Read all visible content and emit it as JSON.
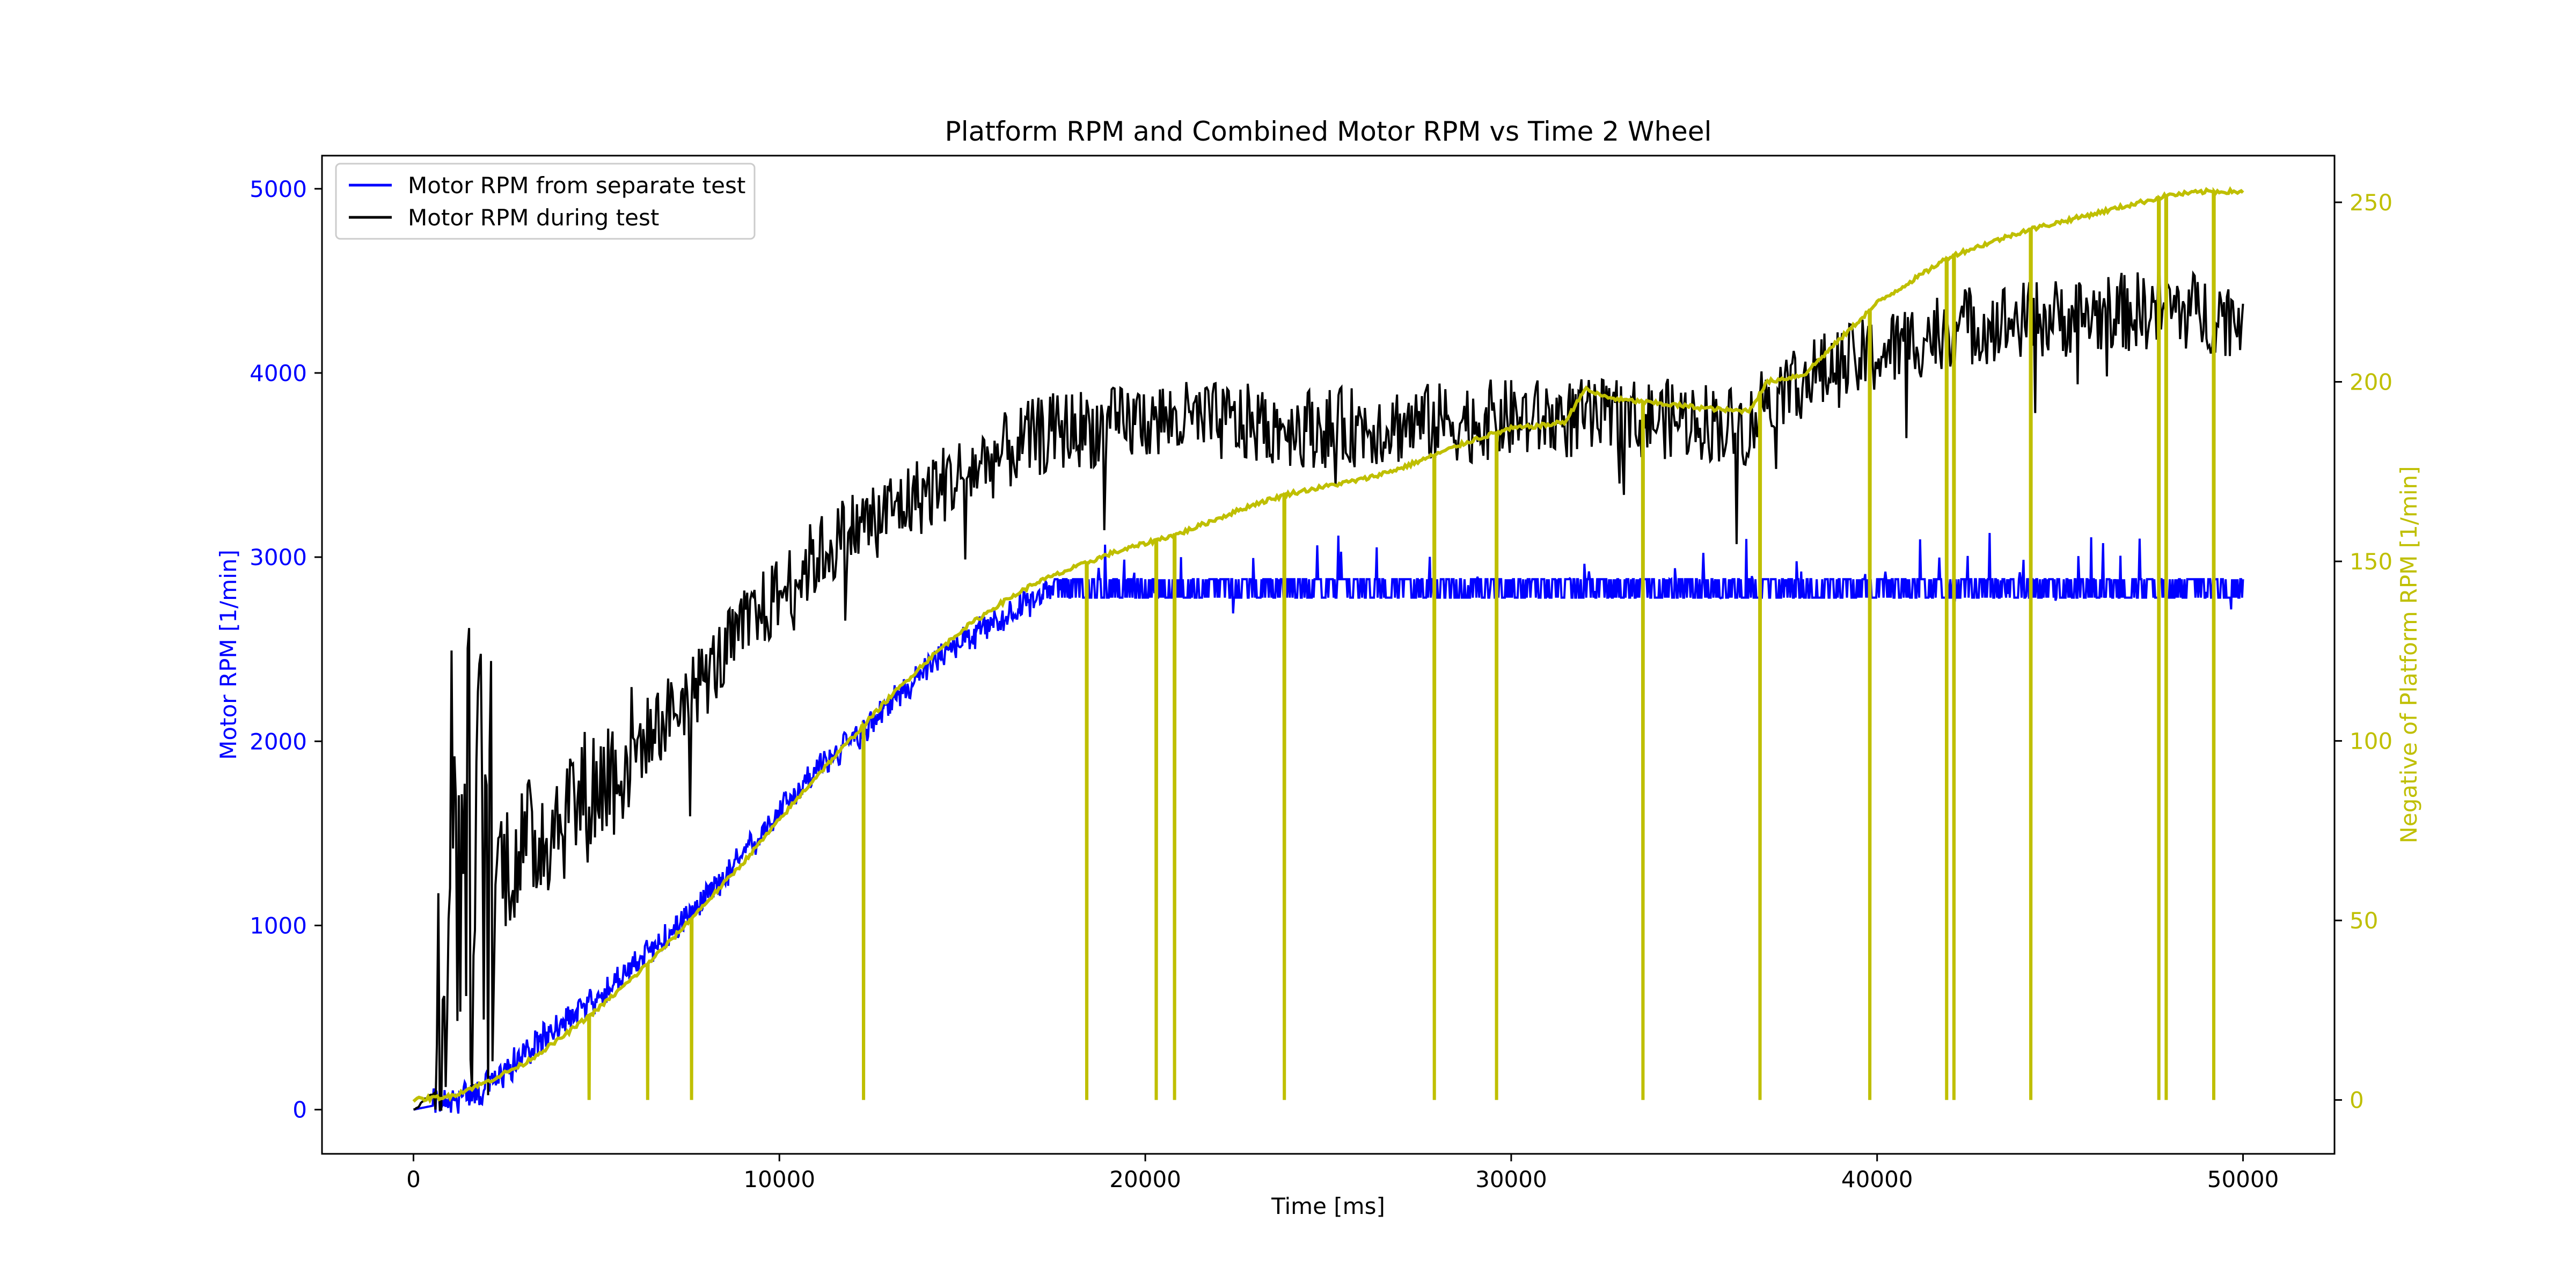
{
  "chart_data": {
    "type": "line",
    "title": "Platform RPM and Combined Motor RPM vs Time 2 Wheel",
    "xlabel": "Time [ms]",
    "ylabel_left": "Motor RPM [1/min]",
    "ylabel_right": "Negative of Platform RPM [1/min]",
    "xlim": [
      -2500,
      52500
    ],
    "ylim_left": [
      -240,
      5180
    ],
    "ylim_right": [
      -15,
      263
    ],
    "x_ticks": [
      0,
      10000,
      20000,
      30000,
      40000,
      50000
    ],
    "y_left_ticks": [
      0,
      1000,
      2000,
      3000,
      4000,
      5000
    ],
    "y_right_ticks": [
      0,
      50,
      100,
      150,
      200,
      250
    ],
    "grid": false,
    "legend": {
      "position": "top-left"
    },
    "colors": {
      "separate_test": "#0000ff",
      "during_test": "#000000",
      "platform": "#bfbf00"
    },
    "series": [
      {
        "name": "Motor RPM from separate test",
        "axis": "left",
        "x": [
          0,
          500,
          1000,
          2000,
          3000,
          4000,
          5000,
          6000,
          7000,
          8000,
          9000,
          10000,
          11000,
          12000,
          13000,
          14000,
          15000,
          16000,
          17000,
          17500,
          20000,
          25000,
          30000,
          35000,
          40000,
          45000,
          50000
        ],
        "y": [
          0,
          20,
          50,
          120,
          300,
          450,
          600,
          780,
          950,
          1150,
          1370,
          1620,
          1850,
          2000,
          2200,
          2400,
          2550,
          2650,
          2780,
          2850,
          2850,
          2850,
          2850,
          2850,
          2850,
          2850,
          2850
        ],
        "noise": 70
      },
      {
        "name": "Motor RPM during test",
        "axis": "left",
        "x": [
          0,
          600,
          1000,
          2000,
          3000,
          4000,
          5000,
          6000,
          7000,
          8000,
          9000,
          10000,
          11000,
          12000,
          13000,
          14000,
          15000,
          16000,
          17000,
          18000,
          19000,
          20000,
          25000,
          30000,
          35000,
          36500,
          37000,
          40000,
          42000,
          45000,
          48000,
          50000
        ],
        "y": [
          0,
          100,
          1500,
          1300,
          1400,
          1600,
          1750,
          1950,
          2150,
          2350,
          2600,
          2800,
          3000,
          3150,
          3250,
          3350,
          3450,
          3550,
          3650,
          3700,
          3700,
          3750,
          3700,
          3750,
          3750,
          3700,
          3900,
          4100,
          4250,
          4300,
          4350,
          4300
        ],
        "noise": 220
      },
      {
        "name": "Negative of Platform RPM",
        "axis": "right",
        "x": [
          0,
          1000,
          2000,
          3000,
          4000,
          5000,
          6000,
          7000,
          8000,
          9000,
          10000,
          11000,
          12000,
          13000,
          14000,
          15000,
          16000,
          17000,
          18000,
          19000,
          20000,
          21000,
          22000,
          23000,
          24000,
          25000,
          26000,
          27000,
          28000,
          29000,
          30000,
          31000,
          31500,
          32000,
          32500,
          33000,
          34000,
          35000,
          36000,
          36500,
          37000,
          38000,
          39000,
          40000,
          42000,
          44000,
          46000,
          48000,
          49000,
          50000
        ],
        "y": [
          0,
          1,
          5,
          10,
          17,
          25,
          34,
          44,
          55,
          66,
          78,
          90,
          101,
          112,
          122,
          131,
          138,
          144,
          148,
          152,
          155,
          158,
          162,
          166,
          169,
          171,
          173,
          176,
          180,
          184,
          187,
          188,
          189,
          198,
          196,
          195,
          194,
          193,
          192,
          192,
          200,
          202,
          212,
          222,
          235,
          242,
          247,
          252,
          253,
          253
        ],
        "dropouts": [
          4800,
          6400,
          7600,
          12300,
          18400,
          20300,
          20800,
          23800,
          27900,
          29600,
          33600,
          36800,
          39800,
          41900,
          42100,
          44200,
          47700,
          47900,
          49200
        ]
      }
    ]
  }
}
